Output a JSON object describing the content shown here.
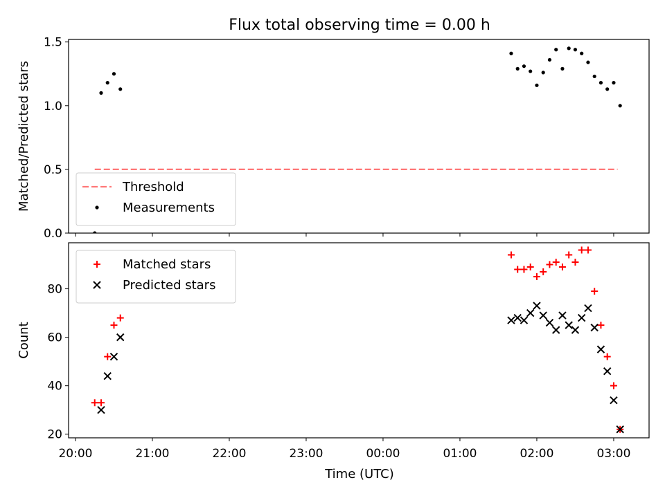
{
  "chart_data": {
    "title": "Flux total observing time = 0.00 h",
    "type": "scatter",
    "xlabel": "Time (UTC)",
    "x_ticks": [
      "20:00",
      "21:00",
      "22:00",
      "23:00",
      "00:00",
      "01:00",
      "02:00",
      "03:00"
    ],
    "x_tick_hours": [
      0,
      1,
      2,
      3,
      4,
      5,
      6,
      7
    ],
    "x_range_hours": [
      -0.09,
      7.46
    ],
    "panels": [
      {
        "ylabel": "Matched/Predicted stars",
        "ylim": [
          0,
          1.52
        ],
        "y_ticks": [
          "0.0",
          "0.5",
          "1.0",
          "1.5"
        ],
        "y_tick_values": [
          0,
          0.5,
          1.0,
          1.5
        ],
        "legend_position": "lower-left",
        "threshold": {
          "name": "Threshold",
          "value": 0.5,
          "x_range": [
            "20:15",
            "03:03"
          ],
          "color": "#ff7777"
        },
        "series": [
          {
            "name": "Measurements",
            "color": "#000000",
            "marker": "dot",
            "points": [
              [
                "20:15",
                0.0
              ],
              [
                "20:20",
                1.1
              ],
              [
                "20:25",
                1.18
              ],
              [
                "20:30",
                1.25
              ],
              [
                "20:35",
                1.13
              ],
              [
                "01:40",
                1.41
              ],
              [
                "01:45",
                1.29
              ],
              [
                "01:50",
                1.31
              ],
              [
                "01:55",
                1.27
              ],
              [
                "02:00",
                1.16
              ],
              [
                "02:05",
                1.26
              ],
              [
                "02:10",
                1.36
              ],
              [
                "02:15",
                1.44
              ],
              [
                "02:20",
                1.29
              ],
              [
                "02:25",
                1.45
              ],
              [
                "02:30",
                1.44
              ],
              [
                "02:35",
                1.41
              ],
              [
                "02:40",
                1.34
              ],
              [
                "02:45",
                1.23
              ],
              [
                "02:50",
                1.18
              ],
              [
                "02:55",
                1.13
              ],
              [
                "03:00",
                1.18
              ],
              [
                "03:05",
                1.0
              ]
            ]
          }
        ]
      },
      {
        "ylabel": "Count",
        "ylim": [
          18.5,
          99
        ],
        "y_ticks": [
          "20",
          "40",
          "60",
          "80"
        ],
        "y_tick_values": [
          20,
          40,
          60,
          80
        ],
        "legend_position": "upper-left",
        "series": [
          {
            "name": "Matched stars",
            "color": "#ff0000",
            "marker": "plus",
            "points": [
              [
                "20:15",
                33
              ],
              [
                "20:20",
                33
              ],
              [
                "20:25",
                52
              ],
              [
                "20:30",
                65
              ],
              [
                "20:35",
                68
              ],
              [
                "01:40",
                94
              ],
              [
                "01:45",
                88
              ],
              [
                "01:50",
                88
              ],
              [
                "01:55",
                89
              ],
              [
                "02:00",
                85
              ],
              [
                "02:05",
                87
              ],
              [
                "02:10",
                90
              ],
              [
                "02:15",
                91
              ],
              [
                "02:20",
                89
              ],
              [
                "02:25",
                94
              ],
              [
                "02:30",
                91
              ],
              [
                "02:35",
                96
              ],
              [
                "02:40",
                96
              ],
              [
                "02:45",
                79
              ],
              [
                "02:50",
                65
              ],
              [
                "02:55",
                52
              ],
              [
                "03:00",
                40
              ],
              [
                "03:05",
                22
              ]
            ]
          },
          {
            "name": "Predicted stars",
            "color": "#000000",
            "marker": "x",
            "points": [
              [
                "20:20",
                30
              ],
              [
                "20:25",
                44
              ],
              [
                "20:30",
                52
              ],
              [
                "20:35",
                60
              ],
              [
                "01:40",
                67
              ],
              [
                "01:45",
                68
              ],
              [
                "01:50",
                67
              ],
              [
                "01:55",
                70
              ],
              [
                "02:00",
                73
              ],
              [
                "02:05",
                69
              ],
              [
                "02:10",
                66
              ],
              [
                "02:15",
                63
              ],
              [
                "02:20",
                69
              ],
              [
                "02:25",
                65
              ],
              [
                "02:30",
                63
              ],
              [
                "02:35",
                68
              ],
              [
                "02:40",
                72
              ],
              [
                "02:45",
                64
              ],
              [
                "02:50",
                55
              ],
              [
                "02:55",
                46
              ],
              [
                "03:00",
                34
              ],
              [
                "03:05",
                22
              ]
            ]
          }
        ]
      }
    ]
  }
}
